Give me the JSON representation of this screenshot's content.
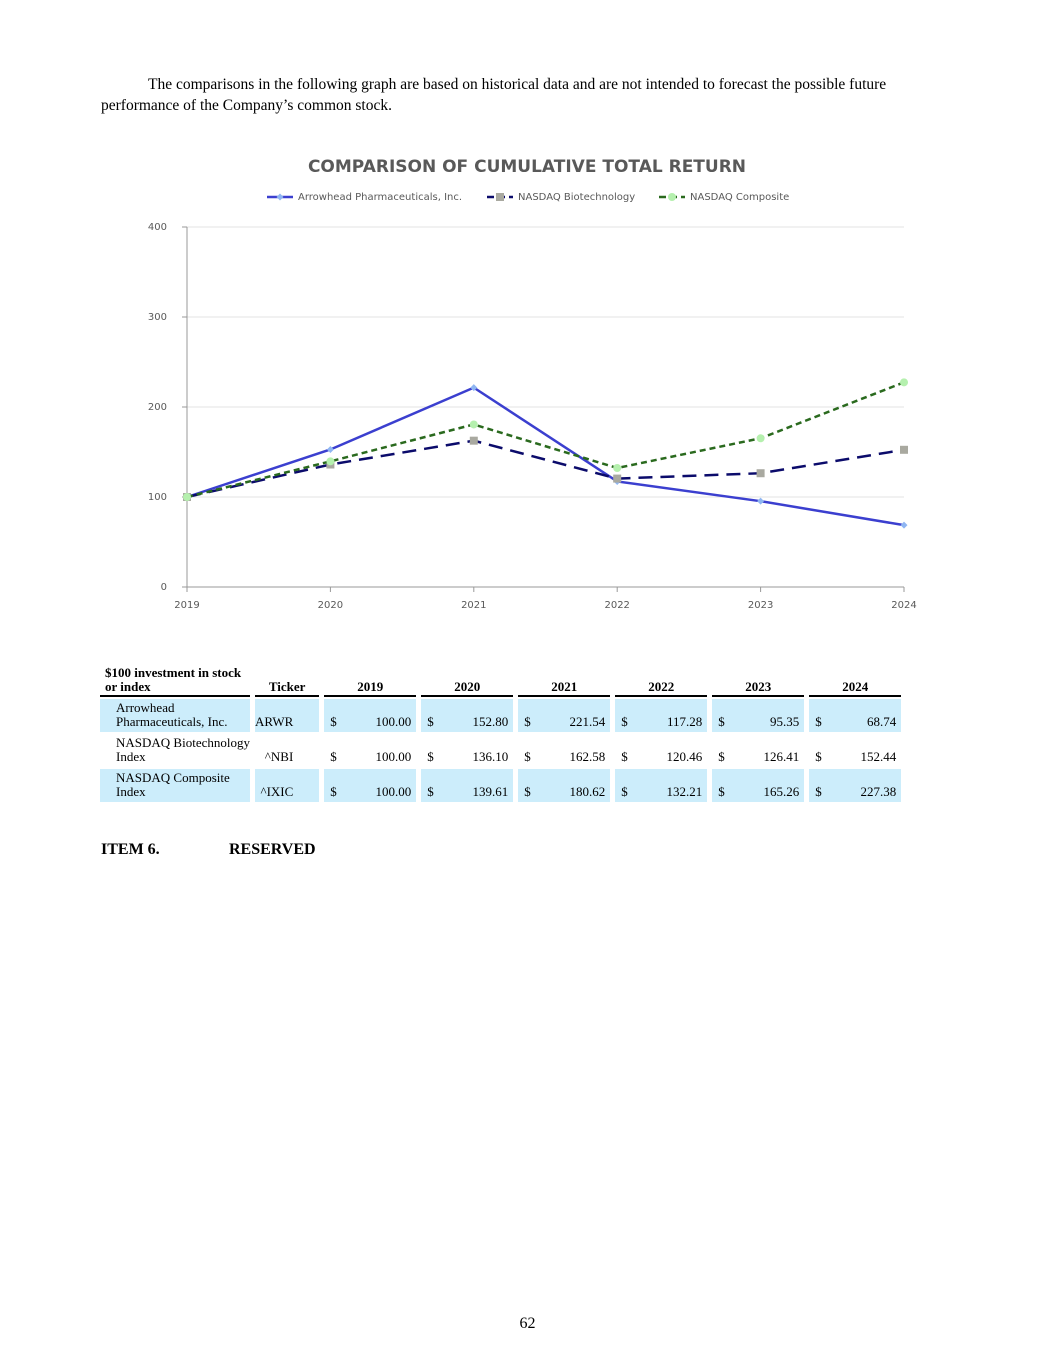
{
  "intro": "The comparisons in the following graph are based on historical data and are not intended to forecast the possible future performance of the Company’s common stock.",
  "chart_data": {
    "type": "line",
    "title": "COMPARISON OF CUMULATIVE TOTAL RETURN",
    "categories": [
      "2019",
      "2020",
      "2021",
      "2022",
      "2023",
      "2024"
    ],
    "series": [
      {
        "name": "Arrowhead Pharmaceuticals, Inc.",
        "color": "#3b3fcf",
        "marker": "diamond",
        "marker_color": "#8fb6f2",
        "dash": "none",
        "values": [
          100.0,
          152.8,
          221.54,
          117.28,
          95.35,
          68.74
        ]
      },
      {
        "name": "NASDAQ Biotechnology",
        "color": "#0b0b6b",
        "marker": "square",
        "marker_color": "#a9a9a0",
        "dash": "14,8",
        "values": [
          100.0,
          136.1,
          162.58,
          120.46,
          126.41,
          152.44
        ]
      },
      {
        "name": "NASDAQ Composite",
        "color": "#2a6a1e",
        "marker": "circle",
        "marker_color": "#b5f0ae",
        "dash": "6,4",
        "values": [
          100.0,
          139.61,
          180.62,
          132.21,
          165.26,
          227.38
        ]
      }
    ],
    "ylim": [
      0,
      400
    ],
    "yticks": [
      0,
      100,
      200,
      300,
      400
    ],
    "grid": true,
    "legend": "top"
  },
  "table": {
    "header": [
      "$100 investment in stock or index",
      "Ticker",
      "2019",
      "2020",
      "2021",
      "2022",
      "2023",
      "2024"
    ],
    "currency": "$",
    "rows": [
      {
        "name": "Arrowhead Pharmaceuticals, Inc.",
        "ticker": "ARWR",
        "values": [
          "100.00",
          "152.80",
          "221.54",
          "117.28",
          "95.35",
          "68.74"
        ]
      },
      {
        "name": "NASDAQ Biotechnology Index",
        "ticker": "^NBI",
        "values": [
          "100.00",
          "136.10",
          "162.58",
          "120.46",
          "126.41",
          "152.44"
        ]
      },
      {
        "name": "NASDAQ Composite Index",
        "ticker": "^IXIC",
        "values": [
          "100.00",
          "139.61",
          "180.62",
          "132.21",
          "165.26",
          "227.38"
        ]
      }
    ]
  },
  "item": {
    "number": "ITEM 6.",
    "title": "RESERVED"
  },
  "page_number": "62"
}
